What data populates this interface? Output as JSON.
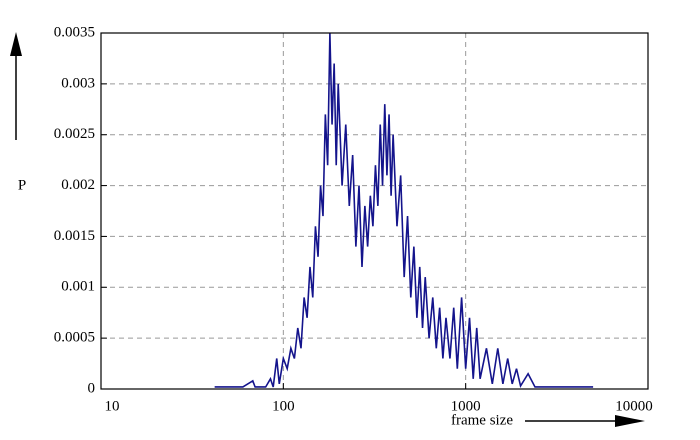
{
  "chart_data": {
    "type": "line",
    "x_label": "frame size",
    "y_label": "P",
    "log_x": true,
    "grid": true,
    "xlim": [
      10,
      10000
    ],
    "xticks": [
      10,
      100,
      1000,
      10000
    ],
    "ylim": [
      0,
      0.0035
    ],
    "yticks": [
      0,
      0.0005,
      0.001,
      0.0015,
      0.002,
      0.0025,
      0.003,
      0.0035
    ],
    "x": [
      42,
      60,
      68,
      70,
      80,
      85,
      88,
      92,
      95,
      100,
      105,
      110,
      115,
      120,
      125,
      130,
      135,
      140,
      145,
      150,
      155,
      160,
      165,
      170,
      175,
      180,
      185,
      190,
      195,
      200,
      210,
      220,
      230,
      240,
      250,
      260,
      270,
      280,
      290,
      300,
      310,
      320,
      330,
      340,
      350,
      360,
      370,
      380,
      390,
      400,
      420,
      440,
      460,
      480,
      500,
      520,
      540,
      560,
      580,
      600,
      630,
      660,
      690,
      720,
      750,
      780,
      820,
      860,
      900,
      950,
      1000,
      1050,
      1100,
      1150,
      1200,
      1300,
      1400,
      1500,
      1600,
      1700,
      1800,
      1900,
      2000,
      2200,
      2400,
      2600,
      5000
    ],
    "series": [
      {
        "color": "#14148c",
        "values": [
          2e-05,
          2e-05,
          8e-05,
          2e-05,
          2e-05,
          0.0001,
          2e-05,
          0.0003,
          5e-05,
          0.0003,
          0.0002,
          0.0004,
          0.0003,
          0.0006,
          0.0004,
          0.0009,
          0.0007,
          0.0012,
          0.0009,
          0.0016,
          0.0013,
          0.002,
          0.0017,
          0.0027,
          0.0022,
          0.0035,
          0.0026,
          0.0032,
          0.0022,
          0.003,
          0.002,
          0.0026,
          0.0018,
          0.0023,
          0.0014,
          0.002,
          0.0012,
          0.0018,
          0.0014,
          0.0019,
          0.0016,
          0.0022,
          0.0018,
          0.0026,
          0.002,
          0.0028,
          0.0021,
          0.0027,
          0.0019,
          0.0025,
          0.0016,
          0.0021,
          0.0011,
          0.0017,
          0.0009,
          0.0014,
          0.0007,
          0.0012,
          0.0006,
          0.0011,
          0.0005,
          0.0009,
          0.0004,
          0.0008,
          0.0003,
          0.0007,
          0.0003,
          0.0008,
          0.0002,
          0.0009,
          0.0002,
          0.0007,
          0.0001,
          0.0006,
          0.0001,
          0.0004,
          5e-05,
          0.0004,
          5e-05,
          0.0003,
          5e-05,
          0.0002,
          3e-05,
          0.00015,
          2e-05,
          2e-05,
          2e-05
        ]
      }
    ]
  }
}
